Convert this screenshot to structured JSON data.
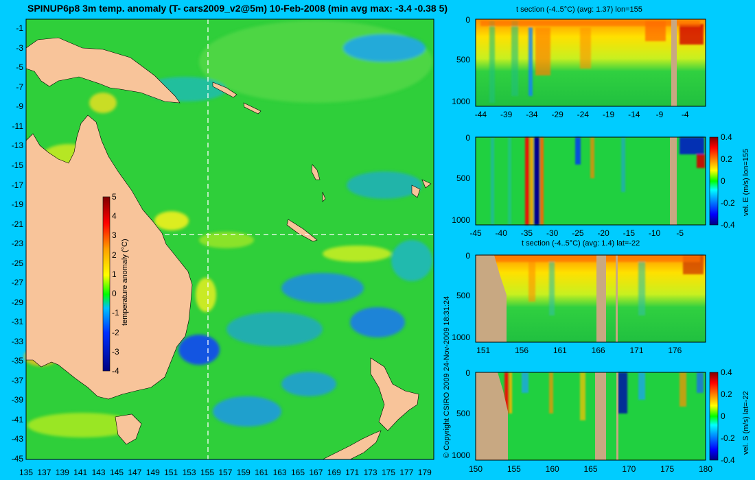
{
  "title": "SPINUP6p8 3m temp. anomaly (T- cars2009_v2@5m) 10-Feb-2008 (min avg max: -3.4 -0.38 5)",
  "copyright": "© Copyright CSIRO 2009   24-Nov-2009 18:31:24",
  "colors": {
    "background": "#00ccff",
    "ocean": "#2fcf3a",
    "land": "#f8c49a",
    "section_land": "#c8a882",
    "colormap": [
      "#000080",
      "#0000ff",
      "#00a0ff",
      "#00ffff",
      "#00ff00",
      "#ffff00",
      "#ff8000",
      "#ff0000",
      "#800000"
    ]
  },
  "chart_data": [
    {
      "type": "heatmap",
      "name": "map",
      "title": "SPINUP6p8 3m temp. anomaly (T- cars2009_v2@5m) 10-Feb-2008 (min avg max: -3.4 -0.38 5)",
      "xlabel": "",
      "ylabel": "",
      "xlim": [
        135,
        180
      ],
      "ylim": [
        -45,
        0
      ],
      "x_ticks": [
        "135",
        "137",
        "139",
        "141",
        "143",
        "145",
        "147",
        "149",
        "151",
        "153",
        "155",
        "157",
        "159",
        "161",
        "163",
        "165",
        "167",
        "169",
        "171",
        "173",
        "175",
        "177",
        "179"
      ],
      "y_ticks": [
        "-1",
        "-3",
        "-5",
        "-7",
        "-9",
        "-11",
        "-13",
        "-15",
        "-17",
        "-19",
        "-21",
        "-23",
        "-25",
        "-27",
        "-29",
        "-31",
        "-33",
        "-35",
        "-37",
        "-39",
        "-41",
        "-43",
        "-45"
      ],
      "crosshair": {
        "lon": 155,
        "lat": -22
      },
      "colorbar": {
        "label": "temperature anomaly (°C)",
        "min": -4,
        "max": 5,
        "ticks": [
          "5",
          "4",
          "3",
          "2",
          "1",
          "0",
          "-1",
          "-2",
          "-3",
          "-4"
        ]
      }
    },
    {
      "type": "heatmap",
      "name": "t-section-lon155",
      "title": "t section (-4..5°C) (avg: 1.37) lon=155",
      "xlabel": "",
      "ylabel": "",
      "x_ticks": [
        "-44",
        "-39",
        "-34",
        "-29",
        "-24",
        "-19",
        "-14",
        "-9",
        "-4"
      ],
      "y_ticks": [
        "0",
        "500",
        "1000"
      ],
      "xlim": [
        -45,
        0
      ],
      "ylim": [
        0,
        1050
      ]
    },
    {
      "type": "heatmap",
      "name": "u-section-lon155",
      "title": "",
      "xlabel": "",
      "ylabel": "",
      "x_ticks": [
        "-45",
        "-40",
        "-35",
        "-30",
        "-25",
        "-20",
        "-15",
        "-10",
        "-5"
      ],
      "y_ticks": [
        "0",
        "500",
        "1000"
      ],
      "xlim": [
        -45,
        0
      ],
      "ylim": [
        0,
        1050
      ],
      "colorbar": {
        "label": "vel. E (m/s) lon=155",
        "min": -0.4,
        "max": 0.4,
        "ticks": [
          "0.4",
          "0.2",
          "0",
          "-0.2",
          "-0.4"
        ]
      }
    },
    {
      "type": "heatmap",
      "name": "t-section-lat-22",
      "title": "t section (-4..5°C) (avg: 1.4) lat=-22",
      "xlabel": "",
      "ylabel": "",
      "x_ticks": [
        "151",
        "156",
        "161",
        "166",
        "171",
        "176"
      ],
      "y_ticks": [
        "0",
        "500",
        "1000"
      ],
      "xlim": [
        150,
        180
      ],
      "ylim": [
        0,
        1050
      ]
    },
    {
      "type": "heatmap",
      "name": "v-section-lat-22",
      "title": "",
      "xlabel": "",
      "ylabel": "",
      "x_ticks": [
        "150",
        "155",
        "160",
        "165",
        "170",
        "175",
        "180"
      ],
      "y_ticks": [
        "0",
        "500",
        "1000"
      ],
      "xlim": [
        150,
        180
      ],
      "ylim": [
        0,
        1050
      ],
      "colorbar": {
        "label": "vel. S (m/s) lat=-22",
        "min": -0.4,
        "max": 0.4,
        "ticks": [
          "0.4",
          "0.2",
          "0",
          "-0.2",
          "-0.4"
        ]
      }
    }
  ]
}
